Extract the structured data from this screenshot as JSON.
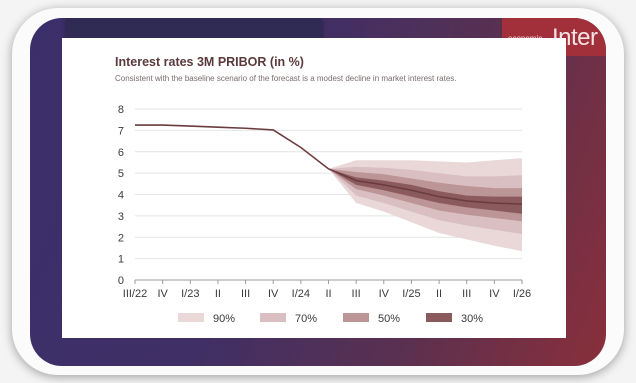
{
  "chart_data": {
    "type": "area",
    "title": "Interest rates 3M PRIBOR (in %)",
    "subtitle": "Consistent with the baseline scenario of the forecast is a modest decline in market interest rates.",
    "categories": [
      "III/22",
      "IV",
      "I/23",
      "II",
      "III",
      "IV",
      "I/24",
      "II",
      "III",
      "IV",
      "I/25",
      "II",
      "III",
      "IV",
      "I/26"
    ],
    "ylim": [
      0,
      8
    ],
    "yticks": [
      0,
      1,
      2,
      3,
      4,
      5,
      6,
      7,
      8
    ],
    "grid": true,
    "legend_position": "bottom",
    "baseline": [
      7.25,
      7.25,
      7.2,
      7.15,
      7.1,
      7.02,
      6.2,
      5.2,
      4.65,
      4.45,
      4.2,
      3.9,
      3.7,
      3.6,
      3.55
    ],
    "forecast_start_index": 7,
    "bands": [
      {
        "name": "90%",
        "color": "#ead8d9",
        "lower": [
          5.2,
          3.6,
          3.2,
          2.7,
          2.2,
          1.9,
          1.6,
          1.35
        ],
        "upper": [
          5.2,
          5.6,
          5.6,
          5.6,
          5.55,
          5.5,
          5.6,
          5.7
        ]
      },
      {
        "name": "70%",
        "color": "#d9bfc1",
        "lower": [
          5.2,
          3.95,
          3.6,
          3.2,
          2.8,
          2.55,
          2.35,
          2.15
        ],
        "upper": [
          5.2,
          5.3,
          5.25,
          5.15,
          5.0,
          4.85,
          4.85,
          4.9
        ]
      },
      {
        "name": "50%",
        "color": "#bc9597",
        "lower": [
          5.2,
          4.25,
          3.95,
          3.6,
          3.25,
          3.05,
          2.9,
          2.75
        ],
        "upper": [
          5.2,
          5.05,
          4.95,
          4.75,
          4.55,
          4.4,
          4.3,
          4.3
        ]
      },
      {
        "name": "30%",
        "color": "#8b5a5d",
        "lower": [
          5.2,
          4.45,
          4.2,
          3.9,
          3.6,
          3.4,
          3.25,
          3.1
        ],
        "upper": [
          5.2,
          4.8,
          4.65,
          4.45,
          4.15,
          3.95,
          3.9,
          3.9
        ]
      }
    ],
    "line_color": "#6b3c3f"
  },
  "brand": {
    "small_line1": "economic",
    "small_line2": "economic",
    "big_text": "Inter"
  }
}
